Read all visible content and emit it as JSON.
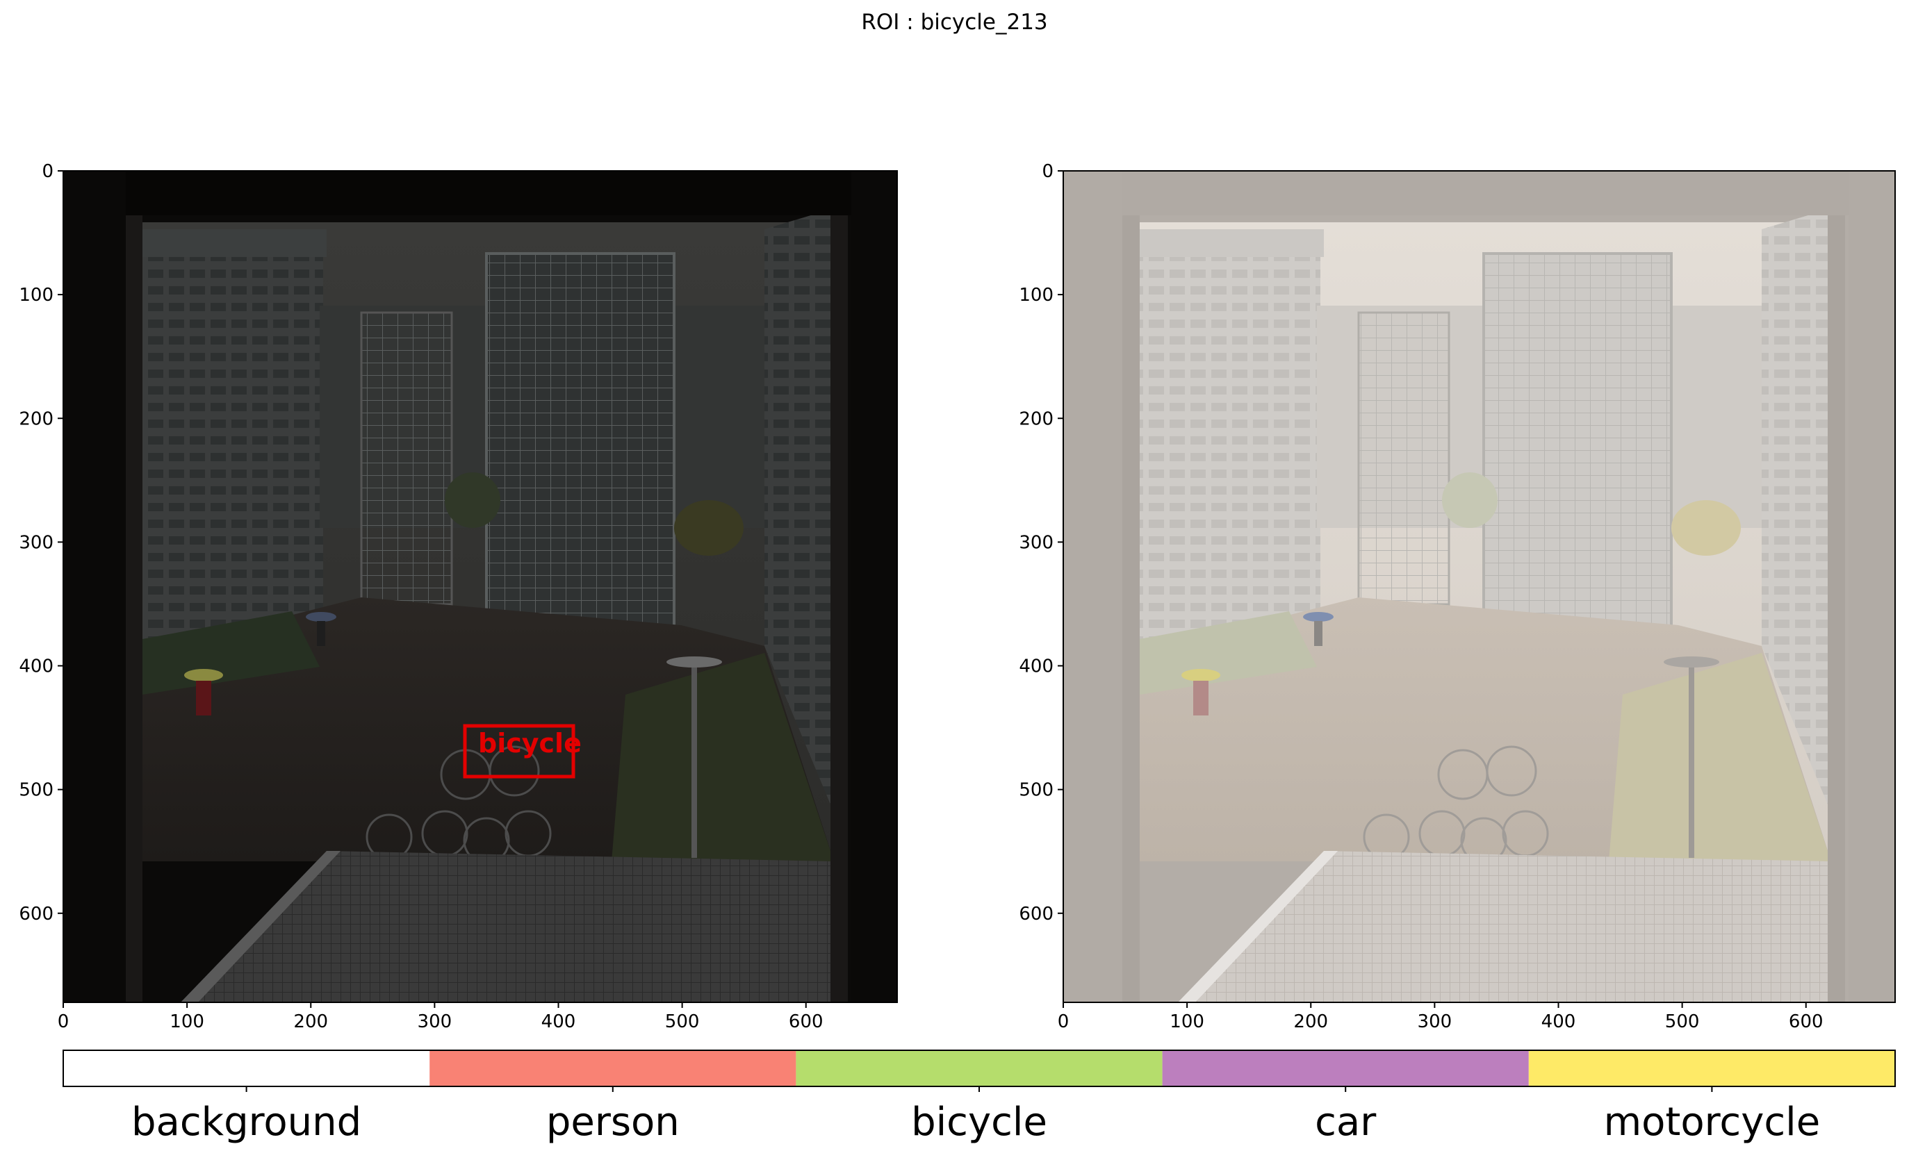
{
  "figure": {
    "title": "ROI : bicycle_213"
  },
  "left_image": {
    "description_hint": "dark photo of rainy courtyard with spiral staircase towers",
    "roi": {
      "label": "bicycle",
      "color": "#e30000"
    }
  },
  "right_image": {
    "description_hint": "same photo with light semi-transparent segmentation overlay"
  },
  "axes": {
    "x_ticks": [
      "0",
      "100",
      "200",
      "300",
      "400",
      "500",
      "600"
    ],
    "y_ticks": [
      "0",
      "100",
      "200",
      "300",
      "400",
      "500",
      "600"
    ]
  },
  "legend": {
    "classes": [
      {
        "name": "background",
        "color": "#ffffff"
      },
      {
        "name": "person",
        "color": "#f98274"
      },
      {
        "name": "bicycle",
        "color": "#b5dd6c"
      },
      {
        "name": "car",
        "color": "#bc7fbe"
      },
      {
        "name": "motorcycle",
        "color": "#feea67"
      }
    ]
  }
}
